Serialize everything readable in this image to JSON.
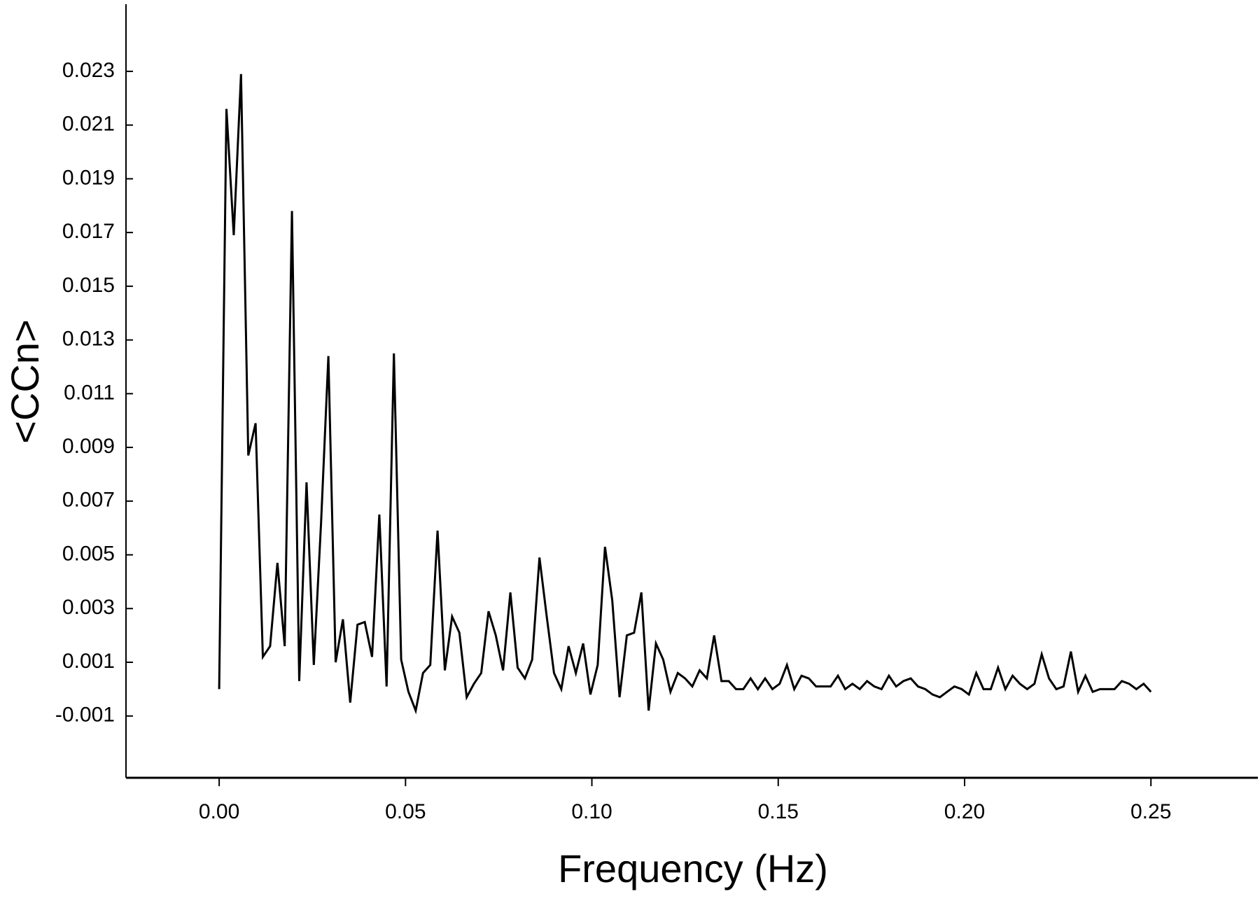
{
  "chart_data": {
    "type": "line",
    "xlabel": "Frequency (Hz)",
    "ylabel": "<CCn>",
    "xlim": [
      -0.025,
      0.2787
    ],
    "ylim": [
      -0.0033,
      0.0255
    ],
    "xticks": [
      {
        "value": 0,
        "label": "0.00"
      },
      {
        "value": 0.05,
        "label": "0.05"
      },
      {
        "value": 0.1,
        "label": "0.10"
      },
      {
        "value": 0.15,
        "label": "0.15"
      },
      {
        "value": 0.2,
        "label": "0.20"
      },
      {
        "value": 0.25,
        "label": "0.25"
      }
    ],
    "yticks": [
      -0.001,
      0.001,
      0.003,
      0.005,
      0.007,
      0.009,
      0.011,
      0.013,
      0.015,
      0.017,
      0.019,
      0.021,
      0.023
    ],
    "series": [
      {
        "color": "#000000",
        "x": [
          0,
          0.00195,
          0.00391,
          0.00586,
          0.00781,
          0.00977,
          0.01172,
          0.01367,
          0.01563,
          0.01758,
          0.01953,
          0.02148,
          0.02344,
          0.02539,
          0.02734,
          0.0293,
          0.03125,
          0.0332,
          0.03516,
          0.03711,
          0.03906,
          0.04102,
          0.04297,
          0.04492,
          0.04688,
          0.04883,
          0.05078,
          0.05273,
          0.05469,
          0.05664,
          0.05859,
          0.06055,
          0.0625,
          0.06445,
          0.06641,
          0.06836,
          0.07031,
          0.07227,
          0.07422,
          0.07617,
          0.07813,
          0.08008,
          0.08203,
          0.08398,
          0.08594,
          0.08789,
          0.08984,
          0.0918,
          0.09375,
          0.0957,
          0.09766,
          0.09961,
          0.10156,
          0.10352,
          0.10547,
          0.10742,
          0.10938,
          0.11133,
          0.11328,
          0.11523,
          0.11719,
          0.11914,
          0.12109,
          0.12305,
          0.125,
          0.12695,
          0.12891,
          0.13086,
          0.13281,
          0.13477,
          0.13672,
          0.13867,
          0.14063,
          0.14258,
          0.14453,
          0.14648,
          0.14844,
          0.15039,
          0.15234,
          0.1543,
          0.15625,
          0.1582,
          0.16016,
          0.16211,
          0.16406,
          0.16602,
          0.16797,
          0.16992,
          0.17188,
          0.17383,
          0.17578,
          0.17773,
          0.17969,
          0.18164,
          0.18359,
          0.18555,
          0.1875,
          0.18945,
          0.19141,
          0.19336,
          0.19531,
          0.19727,
          0.19922,
          0.20117,
          0.20313,
          0.20508,
          0.20703,
          0.20898,
          0.21094,
          0.21289,
          0.21484,
          0.2168,
          0.21875,
          0.2207,
          0.22266,
          0.22461,
          0.22656,
          0.22852,
          0.23047,
          0.23242,
          0.23438,
          0.23633,
          0.23828,
          0.24023,
          0.24219,
          0.24414,
          0.24609,
          0.24805,
          0.25
        ],
        "values": [
          0,
          0.0216,
          0.0169,
          0.0229,
          0.0087,
          0.0099,
          0.0012,
          0.0016,
          0.0047,
          0.0016,
          0.0178,
          0.0003,
          0.0077,
          0.0009,
          0.0062,
          0.0124,
          0.001,
          0.0026,
          -0.0005,
          0.0024,
          0.0025,
          0.0012,
          0.0065,
          0.0001,
          0.0125,
          0.0011,
          -0.0001,
          -0.0008,
          0.0006,
          0.0009,
          0.0059,
          0.0007,
          0.0027,
          0.0021,
          -0.0003,
          0.0002,
          0.0006,
          0.0029,
          0.002,
          0.0007,
          0.0036,
          0.0008,
          0.0004,
          0.0011,
          0.0049,
          0.0027,
          0.0006,
          0,
          0.0016,
          0.0006,
          0.0017,
          -0.0002,
          0.0009,
          0.0053,
          0.0033,
          -0.0003,
          0.002,
          0.0021,
          0.0036,
          -0.0008,
          0.0017,
          0.0011,
          -0.0001,
          0.0006,
          0.0004,
          0.0001,
          0.0007,
          0.0004,
          0.002,
          0.0003,
          0.0003,
          0,
          0,
          0.0004,
          0,
          0.0004,
          0,
          0.0002,
          0.0009,
          0,
          0.0005,
          0.0004,
          0.0001,
          0.0001,
          0.0001,
          0.0005,
          0,
          0.0002,
          0,
          0.0003,
          0.0001,
          0,
          0.0005,
          0.0001,
          0.0003,
          0.0004,
          0.0001,
          0,
          -0.0002,
          -0.0003,
          -0.0001,
          0.0001,
          0,
          -0.0002,
          0.0006,
          0,
          0,
          0.0008,
          0,
          0.0005,
          0.0002,
          0,
          0.0002,
          0.0013,
          0.0004,
          0,
          0.0001,
          0.0014,
          -0.0001,
          0.0005,
          -0.0001,
          0,
          0,
          0,
          0.0003,
          0.0002,
          0,
          0.0002,
          -0.0001
        ]
      }
    ]
  }
}
